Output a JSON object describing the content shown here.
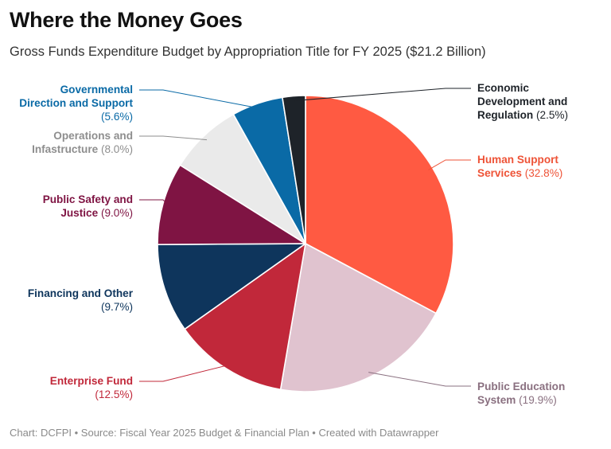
{
  "header": {
    "title": "Where the Money Goes",
    "subtitle": "Gross Funds Expenditure Budget by Appropriation Title for FY 2025 ($21.2 Billion)"
  },
  "footer": {
    "credit": "Chart: DCFPI • Source: Fiscal Year 2025 Budget & Financial Plan  • Created with Datawrapper"
  },
  "chart_data": {
    "type": "pie",
    "title": "Where the Money Goes",
    "subtitle": "Gross Funds Expenditure Budget by Appropriation Title for FY 2025 ($21.2 Billion)",
    "unit": "%",
    "start": "12 o'clock, clockwise",
    "slices": [
      {
        "name": "Human Support Services",
        "lines": [
          "Human Support",
          "Services"
        ],
        "value": 32.8,
        "pct_label": "(32.8%)",
        "color": "#ff5a42",
        "text_color": "#ee5337",
        "side": "right"
      },
      {
        "name": "Public Education System",
        "lines": [
          "Public Education",
          "System"
        ],
        "value": 19.9,
        "pct_label": "(19.9%)",
        "color": "#e0c3cf",
        "text_color": "#8a7080",
        "side": "right"
      },
      {
        "name": "Enterprise Fund",
        "lines": [
          "Enterprise Fund"
        ],
        "value": 12.5,
        "pct_label": "(12.5%)",
        "color": "#c1283a",
        "text_color": "#c1283a",
        "side": "left"
      },
      {
        "name": "Financing and Other",
        "lines": [
          "Financing and Other"
        ],
        "value": 9.7,
        "pct_label": "(9.7%)",
        "color": "#0e355c",
        "text_color": "#0e355c",
        "side": "left"
      },
      {
        "name": "Public Safety and Justice",
        "lines": [
          "Public Safety and",
          "Justice"
        ],
        "value": 9.0,
        "pct_label": "(9.0%)",
        "color": "#7f1443",
        "text_color": "#7f1443",
        "side": "left"
      },
      {
        "name": "Operations and Infastructure",
        "lines": [
          "Operations and",
          "Infastructure"
        ],
        "value": 8.0,
        "pct_label": "(8.0%)",
        "color": "#eaeaea",
        "text_color": "#8e8e8e",
        "side": "left"
      },
      {
        "name": "Governmental Direction and Support",
        "lines": [
          "Governmental",
          "Direction and Support"
        ],
        "value": 5.6,
        "pct_label": "(5.6%)",
        "color": "#0a6aa6",
        "text_color": "#0a6aa6",
        "side": "left"
      },
      {
        "name": "Economic Development and Regulation",
        "lines": [
          "Economic",
          "Development and",
          "Regulation"
        ],
        "value": 2.5,
        "pct_label": "(2.5%)",
        "color": "#1e2329",
        "text_color": "#1e2329",
        "side": "right"
      }
    ]
  }
}
